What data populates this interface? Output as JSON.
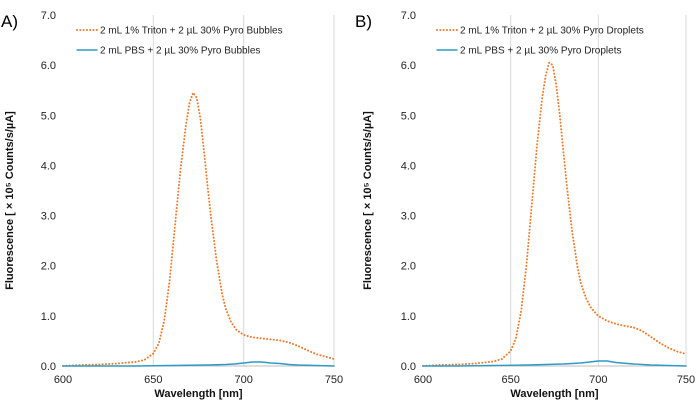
{
  "chart_data": [
    {
      "panel_label": "A)",
      "type": "line",
      "xlabel": "Wavelength [nm]",
      "ylabel": "Fluorescence [ × 10⁵ Counts/s/µA]",
      "xlim": [
        600,
        750
      ],
      "ylim": [
        0,
        7
      ],
      "xticks": [
        600,
        650,
        700,
        750
      ],
      "yticks": [
        "0.0",
        "1.0",
        "2.0",
        "3.0",
        "4.0",
        "5.0",
        "6.0",
        "7.0"
      ],
      "grid": "vertical",
      "legend": "top-left",
      "series": [
        {
          "name": "2 mL 1% Triton + 2 µL 30% Pyro Bubbles",
          "color": "#ED7D31",
          "style": "dotted",
          "x": [
            600,
            610,
            620,
            630,
            640,
            645,
            650,
            653,
            656,
            659,
            662,
            665,
            668,
            670,
            672,
            674,
            676,
            678,
            680,
            682,
            685,
            688,
            690,
            693,
            696,
            700,
            705,
            710,
            715,
            720,
            725,
            730,
            735,
            740,
            745,
            750
          ],
          "y": [
            0.0,
            0.02,
            0.03,
            0.05,
            0.08,
            0.12,
            0.25,
            0.45,
            0.9,
            1.7,
            2.8,
            3.9,
            4.8,
            5.25,
            5.45,
            5.35,
            4.95,
            4.3,
            3.6,
            2.95,
            2.1,
            1.45,
            1.15,
            0.88,
            0.72,
            0.62,
            0.57,
            0.55,
            0.53,
            0.51,
            0.47,
            0.4,
            0.32,
            0.24,
            0.19,
            0.14
          ]
        },
        {
          "name": "2 mL PBS + 2 µL 30% Pyro Bubbles",
          "color": "#2E9AC4",
          "style": "solid",
          "x": [
            600,
            620,
            640,
            660,
            680,
            690,
            695,
            700,
            705,
            710,
            715,
            720,
            725,
            730,
            740,
            750
          ],
          "y": [
            0.0,
            0.0,
            0.0,
            0.01,
            0.02,
            0.03,
            0.04,
            0.06,
            0.08,
            0.08,
            0.06,
            0.05,
            0.03,
            0.02,
            0.01,
            0.0
          ]
        }
      ]
    },
    {
      "panel_label": "B)",
      "type": "line",
      "xlabel": "Wavelength [nm]",
      "ylabel": "Fluorescence [ × 10⁵ Counts/s/µA]",
      "xlim": [
        600,
        750
      ],
      "ylim": [
        0,
        7
      ],
      "xticks": [
        600,
        650,
        700,
        750
      ],
      "yticks": [
        "0.0",
        "1.0",
        "2.0",
        "3.0",
        "4.0",
        "5.0",
        "6.0",
        "7.0"
      ],
      "grid": "vertical",
      "legend": "top-left",
      "series": [
        {
          "name": "2 mL 1% Triton + 2 µL 30% Pyro Droplets",
          "color": "#ED7D31",
          "style": "dotted",
          "x": [
            600,
            610,
            620,
            630,
            640,
            645,
            650,
            653,
            656,
            659,
            662,
            665,
            668,
            670,
            672,
            674,
            676,
            678,
            680,
            682,
            685,
            688,
            690,
            693,
            696,
            700,
            705,
            710,
            715,
            720,
            725,
            730,
            735,
            740,
            745,
            750
          ],
          "y": [
            0.0,
            0.02,
            0.03,
            0.05,
            0.09,
            0.14,
            0.3,
            0.55,
            1.1,
            2.0,
            3.2,
            4.4,
            5.35,
            5.8,
            6.05,
            6.0,
            5.6,
            5.0,
            4.3,
            3.6,
            2.7,
            2.0,
            1.65,
            1.35,
            1.15,
            1.0,
            0.9,
            0.84,
            0.8,
            0.77,
            0.7,
            0.58,
            0.46,
            0.36,
            0.29,
            0.24
          ]
        },
        {
          "name": "2 mL PBS + 2 µL 30% Pyro Droplets",
          "color": "#2E9AC4",
          "style": "solid",
          "x": [
            600,
            620,
            640,
            660,
            670,
            680,
            690,
            695,
            700,
            705,
            710,
            720,
            730,
            740,
            750
          ],
          "y": [
            0.0,
            0.0,
            0.01,
            0.02,
            0.03,
            0.04,
            0.06,
            0.08,
            0.1,
            0.1,
            0.07,
            0.04,
            0.02,
            0.01,
            0.0
          ]
        }
      ]
    }
  ]
}
